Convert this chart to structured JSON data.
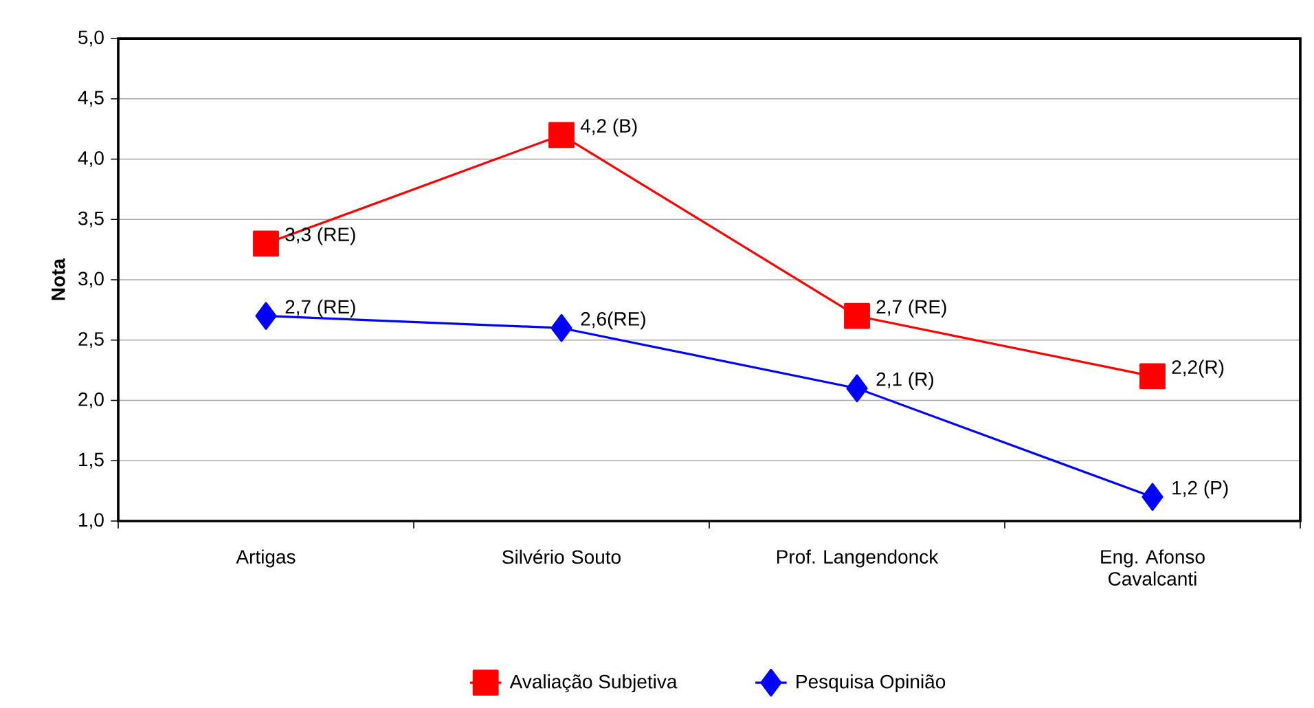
{
  "chart_data": {
    "type": "line",
    "ylabel": "Nota",
    "categories": [
      "Artigas",
      "Silvério Souto",
      "Prof. Langendonck",
      "Eng. Afonso Cavalcanti"
    ],
    "series": [
      {
        "name": "Avaliação Subjetiva",
        "color": "#ff0000",
        "marker": "square",
        "values": [
          3.3,
          4.2,
          2.7,
          2.2
        ],
        "value_labels": [
          "3,3 (RE)",
          "4,2 (B)",
          "2,7 (RE)",
          "2,2(R)"
        ]
      },
      {
        "name": "Pesquisa Opinião",
        "color": "#0000ff",
        "marker": "diamond",
        "values": [
          2.7,
          2.6,
          2.1,
          1.2
        ],
        "value_labels": [
          "2,7 (RE)",
          "2,6(RE)",
          "2,1 (R)",
          "1,2 (P)"
        ]
      }
    ],
    "ylim": [
      1.0,
      5.0
    ],
    "yticks": [
      {
        "value": 1.0,
        "label": "1,0"
      },
      {
        "value": 1.5,
        "label": "1,5"
      },
      {
        "value": 2.0,
        "label": "2,0"
      },
      {
        "value": 2.5,
        "label": "2,5"
      },
      {
        "value": 3.0,
        "label": "3,0"
      },
      {
        "value": 3.5,
        "label": "3,5"
      },
      {
        "value": 4.0,
        "label": "4,0"
      },
      {
        "value": 4.5,
        "label": "4,5"
      },
      {
        "value": 5.0,
        "label": "5,0"
      }
    ],
    "grid": "y",
    "legend": "bottom"
  }
}
